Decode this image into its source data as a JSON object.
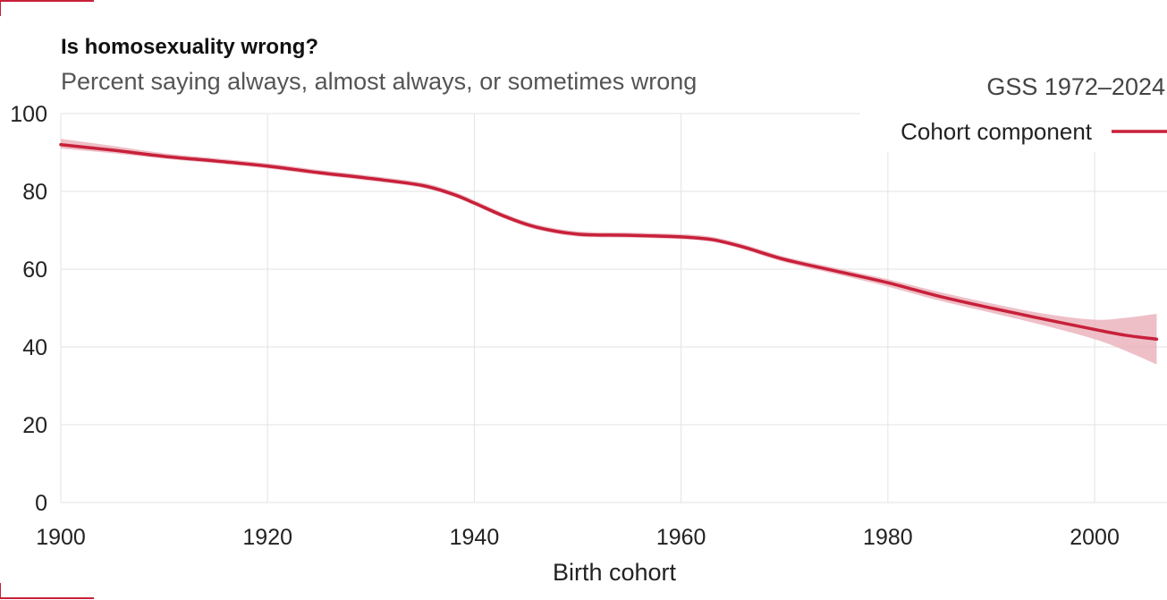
{
  "chart_data": {
    "type": "line",
    "title": "Is homosexuality wrong?",
    "subtitle": "Percent saying always, almost always, or sometimes wrong",
    "source": "GSS 1972–2024",
    "xlabel": "Birth cohort",
    "ylabel": "",
    "xlim": [
      1900,
      2007
    ],
    "ylim": [
      0,
      100
    ],
    "x_ticks": [
      1900,
      1920,
      1940,
      1960,
      1980,
      2000
    ],
    "y_ticks": [
      0,
      20,
      40,
      60,
      80,
      100
    ],
    "grid": true,
    "legend_position": "top-right",
    "series": [
      {
        "name": "Cohort component",
        "color": "#c8203a",
        "band_color": "#e8a9b4",
        "x": [
          1900,
          1905,
          1910,
          1915,
          1920,
          1925,
          1930,
          1935,
          1938,
          1940,
          1943,
          1946,
          1950,
          1955,
          1960,
          1963,
          1966,
          1970,
          1975,
          1980,
          1985,
          1990,
          1995,
          2000,
          2003,
          2006
        ],
        "y": [
          92.0,
          90.6,
          89.0,
          87.8,
          86.5,
          84.8,
          83.3,
          81.5,
          79.2,
          77.0,
          73.5,
          70.8,
          69.0,
          68.7,
          68.3,
          67.6,
          65.7,
          62.5,
          59.5,
          56.5,
          53.0,
          50.0,
          47.2,
          44.5,
          43.0,
          42.0
        ],
        "lower": [
          91.0,
          89.8,
          88.4,
          87.2,
          85.9,
          84.2,
          82.7,
          80.9,
          78.6,
          76.4,
          72.9,
          70.2,
          68.4,
          68.1,
          67.7,
          67.0,
          65.1,
          61.8,
          58.7,
          55.5,
          51.9,
          48.8,
          45.6,
          42.0,
          39.0,
          35.5
        ],
        "upper": [
          93.5,
          91.7,
          89.8,
          88.5,
          87.2,
          85.5,
          84.0,
          82.2,
          79.9,
          77.7,
          74.2,
          71.5,
          69.7,
          69.4,
          69.0,
          68.3,
          66.4,
          63.2,
          60.3,
          57.4,
          54.1,
          51.2,
          48.6,
          47.0,
          47.5,
          48.5
        ]
      }
    ]
  }
}
